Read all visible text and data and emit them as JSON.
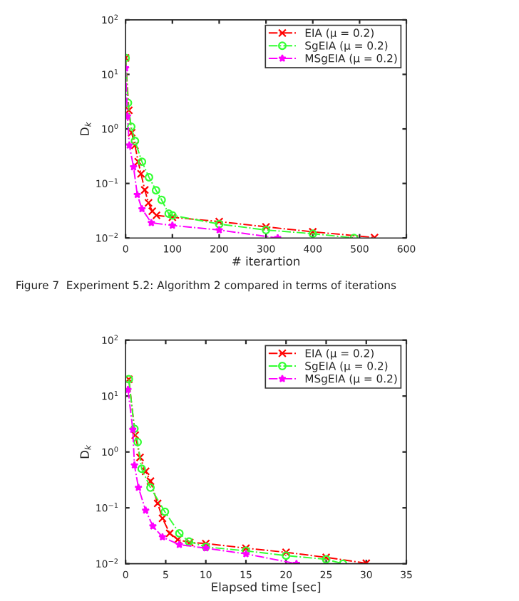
{
  "chart_data": [
    {
      "type": "line",
      "xlabel": "# iterartion",
      "ylabel": "D$_{k}$",
      "log": "y",
      "xlim": [
        0,
        600
      ],
      "xticks": [
        0,
        100,
        200,
        300,
        400,
        500,
        600
      ],
      "ylim": [
        0.01,
        100
      ],
      "yticks": [
        {
          "value": 0.01,
          "label": "10$^{−2}$"
        },
        {
          "value": 0.1,
          "label": "10$^{−1}$"
        },
        {
          "value": 1,
          "label": "10$^{0}$"
        },
        {
          "value": 10,
          "label": "10$^{1}$"
        },
        {
          "value": 100,
          "label": "10$^{2}$"
        }
      ],
      "legend": "top right",
      "grid": false,
      "line_style": "dashed",
      "annotations": [
        "Figure 7  Experiment 5.2: Algorithm 2 compared in terms of iterations"
      ],
      "series": [
        {
          "name": "EIA (μ = 0.2)",
          "color": "#ff0000",
          "marker": "cross",
          "x": [
            0,
            7,
            13,
            20,
            27,
            33,
            41,
            49,
            57,
            66,
            100,
            200,
            300,
            400,
            532
          ],
          "values": [
            20,
            2.2,
            0.85,
            0.5,
            0.25,
            0.15,
            0.076,
            0.044,
            0.031,
            0.026,
            0.024,
            0.02,
            0.016,
            0.013,
            0.0102
          ]
        },
        {
          "name": "SgEIA (μ = 0.2)",
          "color": "#33ff33",
          "marker": "circle",
          "x": [
            0,
            5,
            12,
            20,
            35,
            50,
            65,
            77,
            92,
            100,
            200,
            300,
            400,
            488
          ],
          "values": [
            20,
            3,
            1.1,
            0.6,
            0.25,
            0.13,
            0.075,
            0.05,
            0.028,
            0.026,
            0.018,
            0.014,
            0.012,
            0.01
          ]
        },
        {
          "name": "MSgEIA (μ = 0.2)",
          "color": "#ff00ff",
          "marker": "star",
          "x": [
            0,
            4,
            8,
            17,
            25,
            35,
            55,
            100,
            200,
            325
          ],
          "values": [
            13,
            1.7,
            0.5,
            0.2,
            0.062,
            0.034,
            0.019,
            0.017,
            0.014,
            0.01
          ]
        }
      ]
    },
    {
      "type": "line",
      "xlabel": "Elapsed time [sec]",
      "ylabel": "D$_{k}$",
      "log": "y",
      "xlim": [
        0,
        35
      ],
      "xticks": [
        0,
        5,
        10,
        15,
        20,
        25,
        30,
        35
      ],
      "ylim": [
        0.01,
        100
      ],
      "yticks": [
        {
          "value": 0.01,
          "label": "10$^{−2}$"
        },
        {
          "value": 0.1,
          "label": "10$^{−1}$"
        },
        {
          "value": 1,
          "label": "10$^{0}$"
        },
        {
          "value": 10,
          "label": "10$^{1}$"
        },
        {
          "value": 100,
          "label": "10$^{2}$"
        }
      ],
      "legend": "top right",
      "grid": false,
      "line_style": "dashed",
      "series": [
        {
          "name": "EIA (μ = 0.2)",
          "color": "#ff0000",
          "marker": "cross",
          "x": [
            0.4,
            1.2,
            1.8,
            2.5,
            3.1,
            4,
            4.6,
            5.5,
            6.5,
            8,
            10,
            15,
            20,
            25,
            30
          ],
          "values": [
            20,
            2,
            0.8,
            0.45,
            0.3,
            0.12,
            0.065,
            0.035,
            0.027,
            0.024,
            0.023,
            0.019,
            0.016,
            0.013,
            0.0102
          ]
        },
        {
          "name": "SgEIA (μ = 0.2)",
          "color": "#33ff33",
          "marker": "circle",
          "x": [
            0.4,
            1.1,
            1.5,
            2,
            3.1,
            4.9,
            6.7,
            7.9,
            10,
            15,
            20,
            25,
            27.1
          ],
          "values": [
            20,
            2.6,
            1.5,
            0.5,
            0.23,
            0.085,
            0.035,
            0.025,
            0.02,
            0.017,
            0.014,
            0.012,
            0.01
          ]
        },
        {
          "name": "MSgEIA (μ = 0.2)",
          "color": "#ff00ff",
          "marker": "star",
          "x": [
            0.3,
            0.9,
            1.1,
            1.6,
            2.5,
            3.4,
            4.6,
            6.7,
            10,
            15,
            21.3
          ],
          "values": [
            13,
            2.5,
            0.58,
            0.23,
            0.09,
            0.047,
            0.03,
            0.022,
            0.019,
            0.015,
            0.01
          ]
        }
      ]
    }
  ]
}
